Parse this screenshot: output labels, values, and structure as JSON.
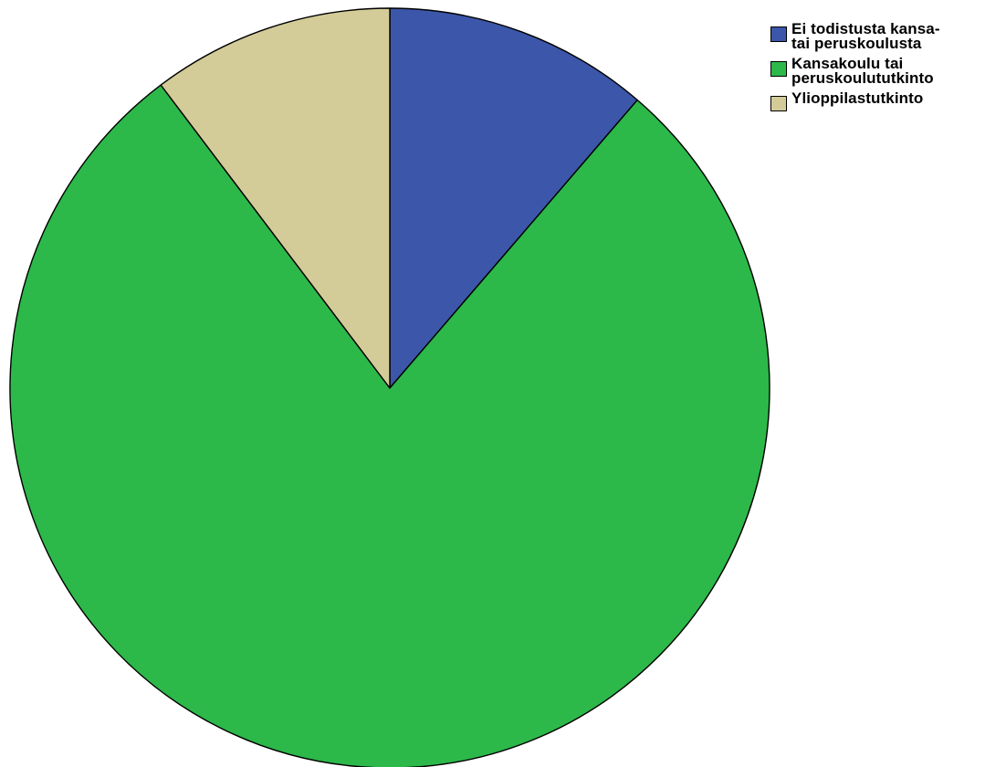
{
  "chart_data": {
    "type": "pie",
    "slices": [
      {
        "label": "Ei todistusta kansa-\ntai peruskoulusta",
        "value": 11.3,
        "color": "#3c56a9"
      },
      {
        "label": "Kansakoulu tai\nperuskoulututkinto",
        "value": 78.4,
        "color": "#2db84a"
      },
      {
        "label": "Ylioppilastutkinto",
        "value": 10.3,
        "color": "#d3cc98"
      }
    ],
    "start_angle_deg": 0,
    "direction": "clockwise",
    "legend_position": "top-right"
  }
}
